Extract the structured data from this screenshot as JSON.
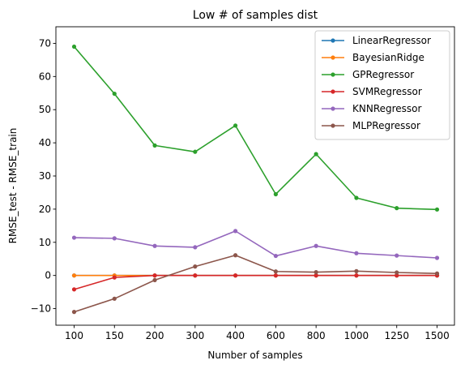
{
  "chart_data": {
    "type": "line",
    "title": "Low # of samples dist",
    "xlabel": "Number of samples",
    "ylabel": "RMSE_test - RMSE_train",
    "categories": [
      "100",
      "150",
      "200",
      "300",
      "400",
      "600",
      "800",
      "1000",
      "1250",
      "1500"
    ],
    "ylim": [
      -15,
      75
    ],
    "yticks": [
      -10,
      0,
      10,
      20,
      30,
      40,
      50,
      60,
      70
    ],
    "grid": false,
    "legend_position": "top-right",
    "series": [
      {
        "name": "LinearRegressor",
        "color": "#1f77b4",
        "values": [
          0,
          0,
          0,
          0,
          0,
          0,
          0,
          0,
          0,
          0
        ]
      },
      {
        "name": "BayesianRidge",
        "color": "#ff7f0e",
        "values": [
          0,
          0,
          0,
          0,
          0,
          0,
          0,
          0,
          0,
          0
        ]
      },
      {
        "name": "GPRegressor",
        "color": "#2ca02c",
        "values": [
          69.0,
          54.8,
          39.2,
          37.3,
          45.2,
          24.5,
          36.6,
          23.4,
          20.3,
          19.9
        ]
      },
      {
        "name": "SVMRegressor",
        "color": "#d62728",
        "values": [
          -4.2,
          -0.6,
          0,
          0,
          0,
          0,
          0,
          0,
          0,
          0
        ]
      },
      {
        "name": "KNNRegressor",
        "color": "#9467bd",
        "values": [
          11.4,
          11.2,
          8.9,
          8.5,
          13.4,
          5.9,
          8.9,
          6.7,
          6.0,
          5.3
        ]
      },
      {
        "name": "MLPRegressor",
        "color": "#8c564b",
        "values": [
          -11.0,
          -7.0,
          -1.4,
          2.7,
          6.1,
          1.2,
          1.0,
          1.3,
          0.9,
          0.6
        ]
      }
    ]
  }
}
